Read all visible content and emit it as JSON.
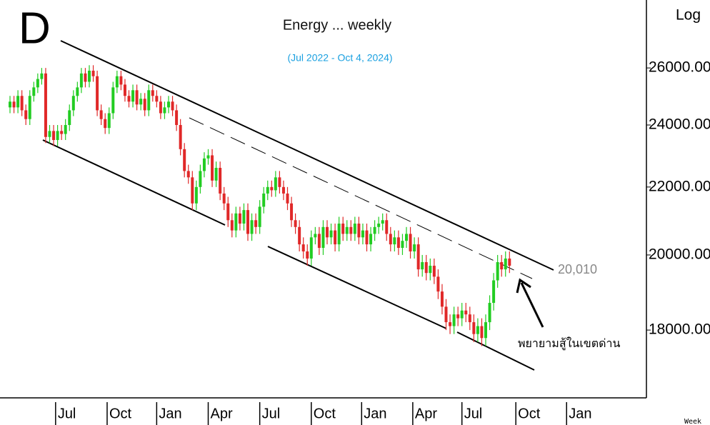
{
  "chart_data": {
    "type": "candlestick",
    "badge": "D",
    "title": "Energy ... weekly",
    "subtitle": "(Jul 2022 - Oct 4, 2024)",
    "scale_label": "Log",
    "period_label": "Week",
    "log_scale": true,
    "annotations": [
      "20,010",
      "พยายามสู้ในเขตด่าน"
    ],
    "up_color": "#22cc22",
    "down_color": "#e02828",
    "xlim": [
      -1,
      160
    ],
    "xticks": [
      {
        "value": 11.5,
        "label": "Jul"
      },
      {
        "value": 24.5,
        "label": "Oct"
      },
      {
        "value": 37,
        "label": "Jan"
      },
      {
        "value": 50,
        "label": "Apr"
      },
      {
        "value": 63,
        "label": "Jul"
      },
      {
        "value": 76,
        "label": "Oct"
      },
      {
        "value": 88.7,
        "label": "Jan"
      },
      {
        "value": 101.6,
        "label": "Apr"
      },
      {
        "value": 114,
        "label": "Jul"
      },
      {
        "value": 127.6,
        "label": "Oct"
      },
      {
        "value": 140.4,
        "label": "Jan"
      }
    ],
    "ylim": [
      16400,
      28600
    ],
    "yticks": [
      {
        "value": 18000,
        "label": "18000.00"
      },
      {
        "value": 20000,
        "label": "20000.00"
      },
      {
        "value": 22000,
        "label": "22000.00"
      },
      {
        "value": 24000,
        "label": "24000.00"
      },
      {
        "value": 26000,
        "label": "26000.00"
      }
    ],
    "open": [
      24600,
      24800,
      24600,
      25000,
      24500,
      24200,
      25000,
      25300,
      25600,
      25800,
      23600,
      23800,
      23500,
      23800,
      23700,
      24000,
      24500,
      25000,
      25300,
      25800,
      25500,
      25900,
      25700,
      24500,
      24200,
      23900,
      24400,
      25300,
      25700,
      25400,
      25000,
      24800,
      25200,
      24700,
      24900,
      24500,
      25200,
      25000,
      24800,
      24400,
      24600,
      24800,
      24500,
      24000,
      23200,
      22500,
      22300,
      21500,
      22000,
      22500,
      22900,
      23000,
      22200,
      22600,
      21800,
      21500,
      21000,
      20700,
      21200,
      20900,
      21300,
      20600,
      21000,
      20800,
      21400,
      21800,
      22000,
      21900,
      22300,
      22000,
      21800,
      21500,
      21000,
      20800,
      20300,
      20100,
      19900,
      20500,
      20600,
      20200,
      20800,
      20500,
      20700,
      20300,
      20900,
      20600,
      20800,
      20600,
      20900,
      20500,
      20700,
      20300,
      20600,
      20800,
      20900,
      21000,
      20600,
      20300,
      20500,
      20200,
      20400,
      20600,
      20100,
      20300,
      19600,
      19800,
      19500,
      19700,
      19400,
      19000,
      18600,
      18200,
      18100,
      18400,
      18300,
      18500,
      18400,
      18200,
      17900,
      18100,
      17800,
      18200,
      18700,
      19300,
      19800,
      19600,
      19900
    ],
    "close": [
      24800,
      24600,
      25000,
      24500,
      24200,
      25000,
      25300,
      25600,
      25800,
      23600,
      23800,
      23500,
      23800,
      23700,
      24000,
      24500,
      25000,
      25300,
      25800,
      25500,
      25900,
      25700,
      24500,
      24200,
      23900,
      24400,
      25300,
      25700,
      25400,
      25000,
      24800,
      25200,
      24700,
      24900,
      24500,
      25200,
      25000,
      24800,
      24400,
      24600,
      24800,
      24500,
      24000,
      23200,
      22500,
      22300,
      21500,
      22000,
      22500,
      22900,
      23000,
      22200,
      22600,
      21800,
      21500,
      21000,
      20700,
      21200,
      20900,
      21300,
      20600,
      21000,
      20800,
      21400,
      21800,
      22000,
      21900,
      22300,
      22000,
      21800,
      21500,
      21000,
      20800,
      20300,
      20100,
      19900,
      20500,
      20600,
      20200,
      20800,
      20500,
      20700,
      20300,
      20900,
      20600,
      20800,
      20600,
      20900,
      20500,
      20700,
      20300,
      20600,
      20800,
      20900,
      21000,
      20600,
      20300,
      20500,
      20200,
      20400,
      20600,
      20100,
      20300,
      19600,
      19800,
      19500,
      19700,
      19400,
      19000,
      18600,
      18200,
      18100,
      18400,
      18300,
      18500,
      18400,
      18200,
      17900,
      18100,
      17800,
      18200,
      18700,
      19300,
      19800,
      19600,
      19900,
      19700
    ],
    "high": [
      25000,
      25000,
      25200,
      25200,
      24700,
      25200,
      25500,
      25800,
      26000,
      26000,
      24000,
      24000,
      24000,
      24000,
      24200,
      24700,
      25200,
      25500,
      26000,
      26000,
      26100,
      26100,
      25900,
      24700,
      24400,
      24600,
      25500,
      25900,
      25900,
      25600,
      25200,
      25400,
      25400,
      25100,
      25100,
      25400,
      25400,
      25200,
      25000,
      24800,
      25000,
      25000,
      24700,
      24200,
      23400,
      22700,
      22500,
      22200,
      22700,
      23100,
      23200,
      23200,
      22800,
      22800,
      22000,
      21700,
      21200,
      21400,
      21400,
      21500,
      21500,
      21200,
      21200,
      21600,
      22000,
      22200,
      22200,
      22500,
      22500,
      22200,
      22000,
      21700,
      21200,
      21000,
      20500,
      20300,
      20700,
      20800,
      20800,
      21000,
      21000,
      20900,
      20900,
      21100,
      21100,
      21000,
      21000,
      21100,
      21100,
      20900,
      20900,
      20800,
      21000,
      21100,
      21200,
      21200,
      20800,
      20700,
      20700,
      20600,
      20800,
      20800,
      20500,
      20500,
      20000,
      20000,
      19900,
      19900,
      19600,
      19200,
      18800,
      18400,
      18600,
      18600,
      18700,
      18700,
      18600,
      18400,
      18300,
      18300,
      18400,
      18900,
      19500,
      20000,
      20000,
      20100,
      20100
    ],
    "low": [
      24400,
      24400,
      24400,
      24300,
      24000,
      24000,
      24800,
      25100,
      25400,
      23400,
      23400,
      23300,
      23300,
      23500,
      23500,
      23800,
      24300,
      24800,
      25100,
      25300,
      25300,
      25500,
      24300,
      24000,
      23700,
      23700,
      24200,
      25100,
      25200,
      24800,
      24600,
      24600,
      24500,
      24500,
      24300,
      24300,
      24800,
      24600,
      24200,
      24200,
      24400,
      24300,
      23800,
      23000,
      22300,
      22100,
      21300,
      21300,
      21800,
      22300,
      22700,
      22000,
      22000,
      21600,
      21300,
      20800,
      20500,
      20500,
      20700,
      20700,
      20400,
      20400,
      20600,
      20600,
      21200,
      21600,
      21700,
      21700,
      21800,
      21600,
      21300,
      20800,
      20600,
      20100,
      19900,
      19700,
      19700,
      20300,
      20000,
      20000,
      20300,
      20300,
      20100,
      20100,
      20400,
      20400,
      20400,
      20400,
      20300,
      20300,
      20100,
      20100,
      20400,
      20600,
      20700,
      20400,
      20100,
      20100,
      20000,
      20000,
      20200,
      19900,
      19900,
      19400,
      19400,
      19300,
      19300,
      19200,
      18800,
      18400,
      18000,
      17900,
      17900,
      18100,
      18100,
      18200,
      18000,
      17700,
      17700,
      17600,
      17600,
      18000,
      18500,
      19100,
      19400,
      19400,
      19500
    ]
  }
}
